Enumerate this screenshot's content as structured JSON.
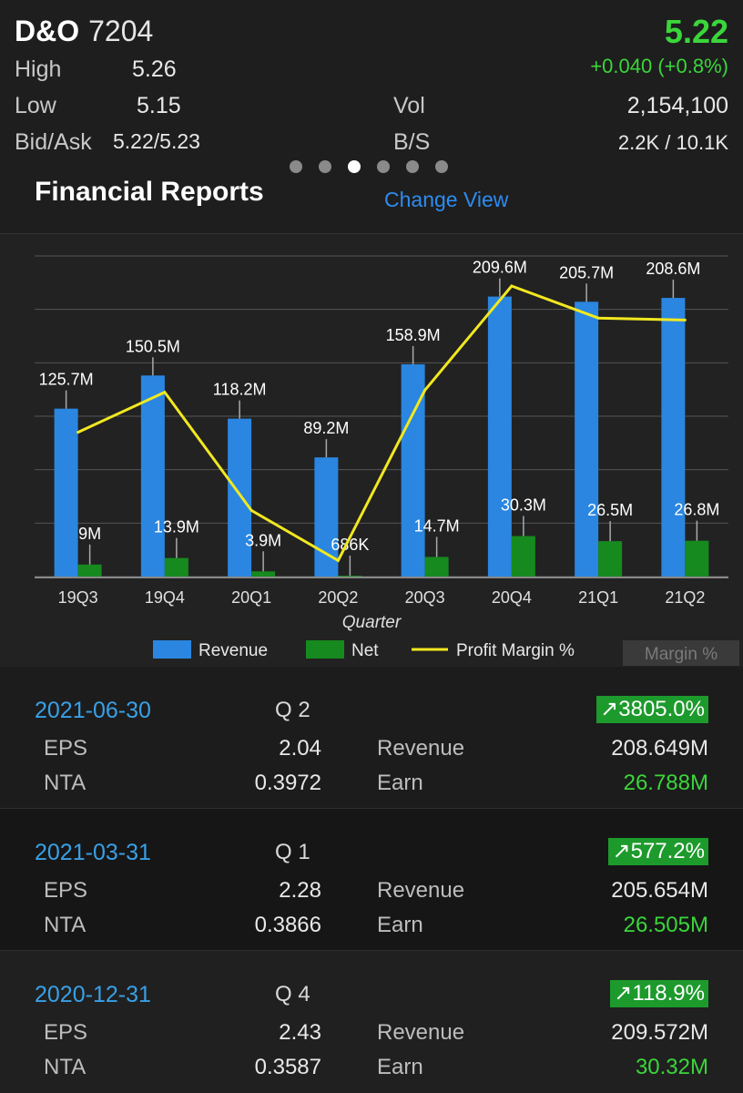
{
  "stock": {
    "name": "D&O",
    "code": "7204",
    "price": "5.22",
    "change": "+0.040 (+0.8%)",
    "high_label": "High",
    "high": "5.26",
    "low_label": "Low",
    "low": "5.15",
    "bidask_label": "Bid/Ask",
    "bidask": "5.22/5.23",
    "vol_label": "Vol",
    "vol": "2,154,100",
    "bs_label": "B/S",
    "bs": "2.2K / 10.1K"
  },
  "pager": {
    "count": 6,
    "active_index": 2
  },
  "financial": {
    "title": "Financial Reports",
    "change_view": "Change View"
  },
  "colors": {
    "revenue": "#2a86e0",
    "net": "#168a1e",
    "margin": "#f2e81f",
    "positive": "#3ad63a",
    "date": "#39a0e6"
  },
  "chart_data": {
    "type": "bar",
    "xlabel": "Quarter",
    "categories": [
      "19Q3",
      "19Q4",
      "20Q1",
      "20Q2",
      "20Q3",
      "20Q4",
      "21Q1",
      "21Q2"
    ],
    "series": [
      {
        "name": "Revenue",
        "values": [
          125.7,
          150.5,
          118.2,
          89.2,
          158.9,
          209.6,
          205.7,
          208.6
        ],
        "labels": [
          "125.7M",
          "150.5M",
          "118.2M",
          "89.2M",
          "158.9M",
          "209.6M",
          "205.7M",
          "208.6M"
        ]
      },
      {
        "name": "Net",
        "values": [
          9,
          13.9,
          3.9,
          0.686,
          14.7,
          30.3,
          26.5,
          26.8
        ],
        "labels": [
          "9M",
          "13.9M",
          "3.9M",
          "686K",
          "14.7M",
          "30.3M",
          "26.5M",
          "26.8M"
        ]
      },
      {
        "name": "Profit Margin %",
        "type": "line",
        "values": [
          7.2,
          9.2,
          3.3,
          0.8,
          9.3,
          14.5,
          12.9,
          12.8
        ]
      }
    ],
    "ylim": [
      0,
      240
    ],
    "grid": true,
    "legend": "bottom",
    "margin_toggle": "Margin %"
  },
  "reports": [
    {
      "date": "2021-06-30",
      "quarter": "Q  2",
      "growth": "↗3805.0%",
      "eps_label": "EPS",
      "eps": "2.04",
      "nta_label": "NTA",
      "nta": "0.3972",
      "rev_label": "Revenue",
      "revenue": "208.649M",
      "earn_label": "Earn",
      "earn": "26.788M"
    },
    {
      "date": "2021-03-31",
      "quarter": "Q  1",
      "growth": "↗577.2%",
      "eps_label": "EPS",
      "eps": "2.28",
      "nta_label": "NTA",
      "nta": "0.3866",
      "rev_label": "Revenue",
      "revenue": "205.654M",
      "earn_label": "Earn",
      "earn": "26.505M"
    },
    {
      "date": "2020-12-31",
      "quarter": "Q  4",
      "growth": "↗118.9%",
      "eps_label": "EPS",
      "eps": "2.43",
      "nta_label": "NTA",
      "nta": "0.3587",
      "rev_label": "Revenue",
      "revenue": "209.572M",
      "earn_label": "Earn",
      "earn": "30.32M"
    }
  ]
}
